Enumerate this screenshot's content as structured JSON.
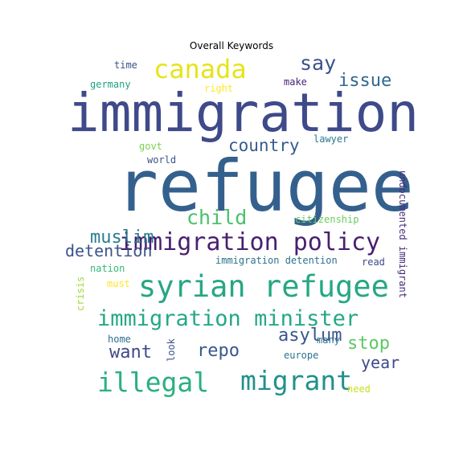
{
  "title": "Overall Keywords",
  "words": [
    {
      "text": "immigration",
      "color": "#3e4a89"
    },
    {
      "text": "refugee",
      "color": "#34608d"
    },
    {
      "text": "syrian refugee",
      "color": "#26a784"
    },
    {
      "text": "immigration policy",
      "color": "#481f70"
    },
    {
      "text": "immigration minister",
      "color": "#25a885"
    },
    {
      "text": "canada",
      "color": "#e6e419"
    },
    {
      "text": "migrant",
      "color": "#21908d"
    },
    {
      "text": "illegal",
      "color": "#2ab07f"
    },
    {
      "text": "say",
      "color": "#3b528b"
    },
    {
      "text": "issue",
      "color": "#31688e"
    },
    {
      "text": "country",
      "color": "#365c8d"
    },
    {
      "text": "child",
      "color": "#4ac16d"
    },
    {
      "text": "muslim",
      "color": "#287d8e"
    },
    {
      "text": "detention",
      "color": "#3b528b"
    },
    {
      "text": "asylum",
      "color": "#39568c"
    },
    {
      "text": "stop",
      "color": "#5ec962"
    },
    {
      "text": "want",
      "color": "#3e4989"
    },
    {
      "text": "repo",
      "color": "#38598c"
    },
    {
      "text": "year",
      "color": "#3e4a89"
    },
    {
      "text": "time",
      "color": "#3b528b"
    },
    {
      "text": "germany",
      "color": "#1fa187"
    },
    {
      "text": "right",
      "color": "#fde725"
    },
    {
      "text": "make",
      "color": "#482475"
    },
    {
      "text": "govt",
      "color": "#7ad151"
    },
    {
      "text": "world",
      "color": "#3b528b"
    },
    {
      "text": "lawyer",
      "color": "#2a788e"
    },
    {
      "text": "citizenship",
      "color": "#6ccd5a"
    },
    {
      "text": "undocumented immigrant",
      "color": "#472d7b"
    },
    {
      "text": "nation",
      "color": "#35b779"
    },
    {
      "text": "immigration detention",
      "color": "#2c728e"
    },
    {
      "text": "read",
      "color": "#3e4989"
    },
    {
      "text": "must",
      "color": "#fde725"
    },
    {
      "text": "crisis",
      "color": "#a0da39"
    },
    {
      "text": "home",
      "color": "#2e6f8e"
    },
    {
      "text": "look",
      "color": "#3b528b"
    },
    {
      "text": "europe",
      "color": "#2d708e"
    },
    {
      "text": "many",
      "color": "#2c728e"
    },
    {
      "text": "need",
      "color": "#c8e020"
    }
  ]
}
